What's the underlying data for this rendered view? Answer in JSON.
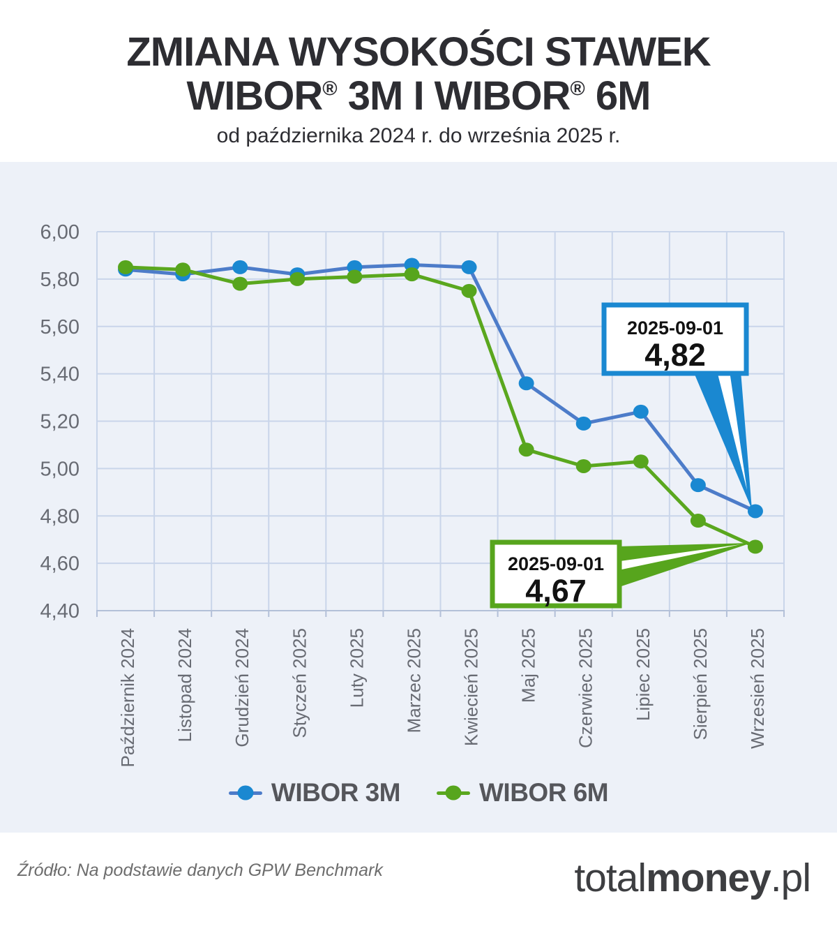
{
  "page": {
    "background": "#ffffff",
    "panel_background": "#edf1f8"
  },
  "header": {
    "title_line1": "ZMIANA WYSOKOŚCI STAWEK",
    "title_line2": "WIBOR® 3M I WIBOR® 6M",
    "subtitle": "od października 2024 r. do września 2025 r."
  },
  "chart_data": {
    "type": "line",
    "title": "Zmiana wysokości stawek WIBOR 3M i WIBOR 6M",
    "xlabel": "",
    "ylabel": "",
    "categories": [
      "Październik 2024",
      "Listopad 2024",
      "Grudzień 2024",
      "Styczeń 2025",
      "Luty 2025",
      "Marzec 2025",
      "Kwiecień 2025",
      "Maj 2025",
      "Czerwiec 2025",
      "Lipiec 2025",
      "Sierpień 2025",
      "Wrzesień 2025"
    ],
    "series": [
      {
        "name": "WIBOR 3M",
        "line_color": "#4d7cc9",
        "marker_color": "#1a88d1",
        "values": [
          5.84,
          5.82,
          5.85,
          5.82,
          5.85,
          5.86,
          5.85,
          5.36,
          5.19,
          5.24,
          4.93,
          4.82
        ]
      },
      {
        "name": "WIBOR 6M",
        "line_color": "#5aa71e",
        "marker_color": "#57a51d",
        "values": [
          5.85,
          5.84,
          5.78,
          5.8,
          5.81,
          5.82,
          5.75,
          5.08,
          5.01,
          5.03,
          4.78,
          4.67
        ]
      }
    ],
    "ylim": [
      4.4,
      6.0
    ],
    "y_tick_step": 0.2,
    "y_ticks": [
      "6,00",
      "5,80",
      "5,60",
      "5,40",
      "5,20",
      "5,00",
      "4,80",
      "4,60",
      "4,40"
    ],
    "grid": true,
    "legend_position": "bottom",
    "axis_text_color": "#686b73",
    "grid_color": "#c9d5ea",
    "axis_line_color": "#b3c0d8",
    "callouts": [
      {
        "series": "WIBOR 3M",
        "date": "2025-09-01",
        "value_label": "4,82",
        "border_color": "#1a88d1",
        "point_index": 11
      },
      {
        "series": "WIBOR 6M",
        "date": "2025-09-01",
        "value_label": "4,67",
        "border_color": "#57a51d",
        "point_index": 11
      }
    ]
  },
  "footer": {
    "source": "Źródło: Na podstawie danych GPW Benchmark",
    "logo": {
      "part1": "total",
      "part2": "money",
      "part3": ".pl"
    }
  }
}
